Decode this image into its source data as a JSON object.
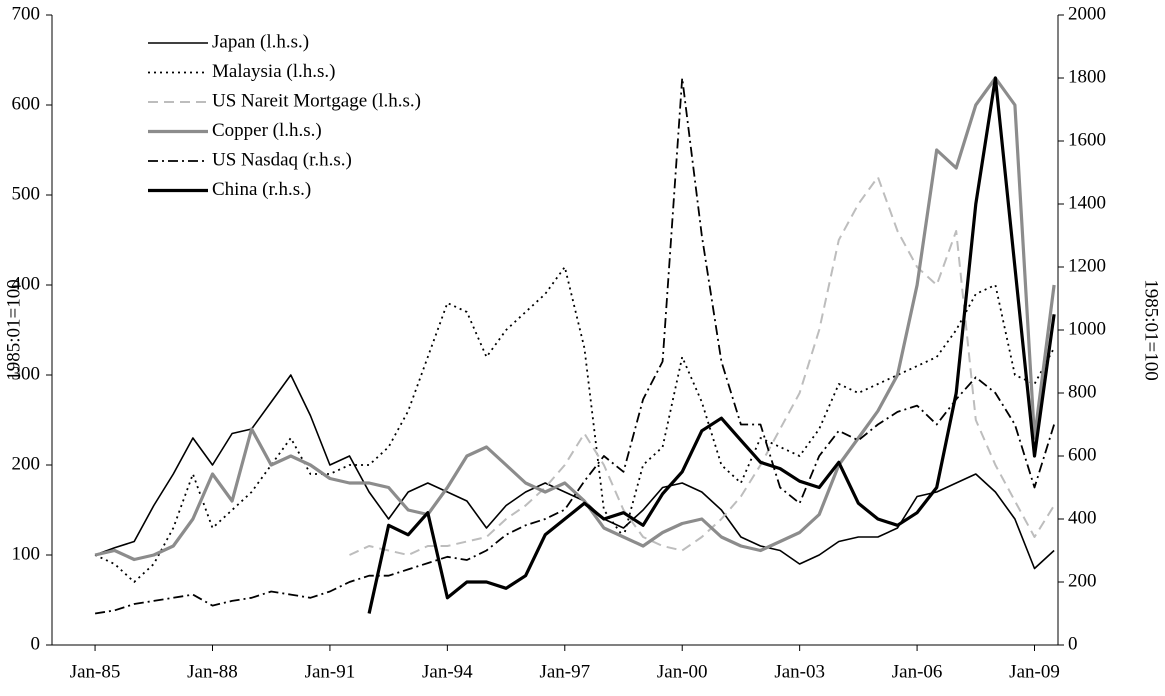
{
  "chart_data": {
    "type": "line",
    "y_label": "1985:01=100",
    "y2_label": "1985:01=100",
    "x": [
      1985,
      1985.5,
      1986,
      1986.5,
      1987,
      1987.5,
      1988,
      1988.5,
      1989,
      1989.5,
      1990,
      1990.5,
      1991,
      1991.5,
      1992,
      1992.5,
      1993,
      1993.5,
      1994,
      1994.5,
      1995,
      1995.5,
      1996,
      1996.5,
      1997,
      1997.5,
      1998,
      1998.5,
      1999,
      1999.5,
      2000,
      2000.5,
      2001,
      2001.5,
      2002,
      2002.5,
      2003,
      2003.5,
      2004,
      2004.5,
      2005,
      2005.5,
      2006,
      2006.5,
      2007,
      2007.5,
      2008,
      2008.5,
      2009,
      2009.5
    ],
    "xlim": [
      1983.9,
      2009.6
    ],
    "xticks": [
      {
        "value": 1985,
        "label": "Jan-85"
      },
      {
        "value": 1988,
        "label": "Jan-88"
      },
      {
        "value": 1991,
        "label": "Jan-91"
      },
      {
        "value": 1994,
        "label": "Jan-94"
      },
      {
        "value": 1997,
        "label": "Jan-97"
      },
      {
        "value": 2000,
        "label": "Jan-00"
      },
      {
        "value": 2003,
        "label": "Jan-03"
      },
      {
        "value": 2006,
        "label": "Jan-06"
      },
      {
        "value": 2009,
        "label": "Jan-09"
      }
    ],
    "ylim": [
      0,
      700
    ],
    "yticks": [
      0,
      100,
      200,
      300,
      400,
      500,
      600,
      700
    ],
    "y2lim": [
      0,
      2000
    ],
    "y2ticks": [
      0,
      200,
      400,
      600,
      800,
      1000,
      1200,
      1400,
      1600,
      1800,
      2000
    ],
    "legend": "upper left",
    "series": [
      {
        "name": "Japan (l.h.s.)",
        "color": "#000000",
        "width": 1.6,
        "dash": "none",
        "axis": "y",
        "values": [
          100,
          108,
          115,
          155,
          190,
          230,
          200,
          235,
          240,
          270,
          300,
          255,
          200,
          210,
          170,
          140,
          170,
          180,
          170,
          160,
          130,
          155,
          170,
          180,
          170,
          160,
          140,
          130,
          150,
          175,
          180,
          170,
          150,
          120,
          110,
          105,
          90,
          100,
          115,
          120,
          120,
          130,
          165,
          170,
          180,
          190,
          170,
          140,
          85,
          105
        ]
      },
      {
        "name": "Malaysia (l.h.s.)",
        "color": "#000000",
        "width": 1.8,
        "dash": "2 4",
        "axis": "y",
        "values": [
          100,
          90,
          70,
          90,
          130,
          190,
          130,
          150,
          170,
          200,
          230,
          190,
          190,
          200,
          200,
          220,
          260,
          320,
          380,
          370,
          320,
          350,
          370,
          390,
          420,
          330,
          150,
          120,
          200,
          220,
          320,
          270,
          200,
          180,
          230,
          220,
          210,
          240,
          290,
          280,
          290,
          300,
          310,
          320,
          350,
          390,
          400,
          300,
          290,
          330
        ]
      },
      {
        "name": "US Nareit Mortgage (l.h.s.)",
        "color": "#bdbdbd",
        "width": 2,
        "dash": "10 6",
        "axis": "y",
        "values": [
          null,
          null,
          null,
          null,
          null,
          null,
          null,
          null,
          null,
          null,
          null,
          null,
          null,
          100,
          110,
          105,
          100,
          110,
          110,
          115,
          120,
          140,
          155,
          175,
          200,
          235,
          200,
          150,
          120,
          110,
          105,
          120,
          140,
          165,
          200,
          240,
          280,
          350,
          450,
          490,
          520,
          460,
          420,
          400,
          460,
          250,
          200,
          160,
          120,
          155
        ]
      },
      {
        "name": "Copper (l.h.s.)",
        "color": "#8c8c8c",
        "width": 3.2,
        "dash": "none",
        "axis": "y",
        "values": [
          100,
          105,
          95,
          100,
          110,
          140,
          190,
          160,
          240,
          200,
          210,
          200,
          185,
          180,
          180,
          175,
          150,
          145,
          175,
          210,
          220,
          200,
          180,
          170,
          180,
          160,
          130,
          120,
          110,
          125,
          135,
          140,
          120,
          110,
          105,
          115,
          125,
          145,
          200,
          230,
          260,
          300,
          400,
          550,
          530,
          600,
          630,
          600,
          230,
          400
        ]
      },
      {
        "name": "US Nasdaq (r.h.s.)",
        "color": "#000000",
        "width": 1.8,
        "dash": "10 4 2 4",
        "axis": "y2",
        "values": [
          100,
          110,
          130,
          140,
          150,
          160,
          125,
          140,
          150,
          170,
          160,
          150,
          170,
          200,
          220,
          220,
          240,
          260,
          280,
          270,
          300,
          350,
          380,
          400,
          430,
          520,
          600,
          550,
          780,
          900,
          1800,
          1300,
          900,
          700,
          700,
          500,
          450,
          600,
          680,
          650,
          700,
          740,
          760,
          700,
          780,
          850,
          800,
          700,
          500,
          700
        ]
      },
      {
        "name": "China (r.h.s.)",
        "color": "#000000",
        "width": 3.2,
        "dash": "none",
        "axis": "y2",
        "values": [
          null,
          null,
          null,
          null,
          null,
          null,
          null,
          null,
          null,
          null,
          null,
          null,
          null,
          null,
          100,
          380,
          350,
          420,
          150,
          200,
          200,
          180,
          220,
          350,
          400,
          450,
          400,
          420,
          380,
          480,
          550,
          680,
          720,
          650,
          580,
          560,
          520,
          500,
          580,
          450,
          400,
          380,
          420,
          500,
          800,
          1400,
          1800,
          1200,
          600,
          1050
        ]
      }
    ]
  }
}
